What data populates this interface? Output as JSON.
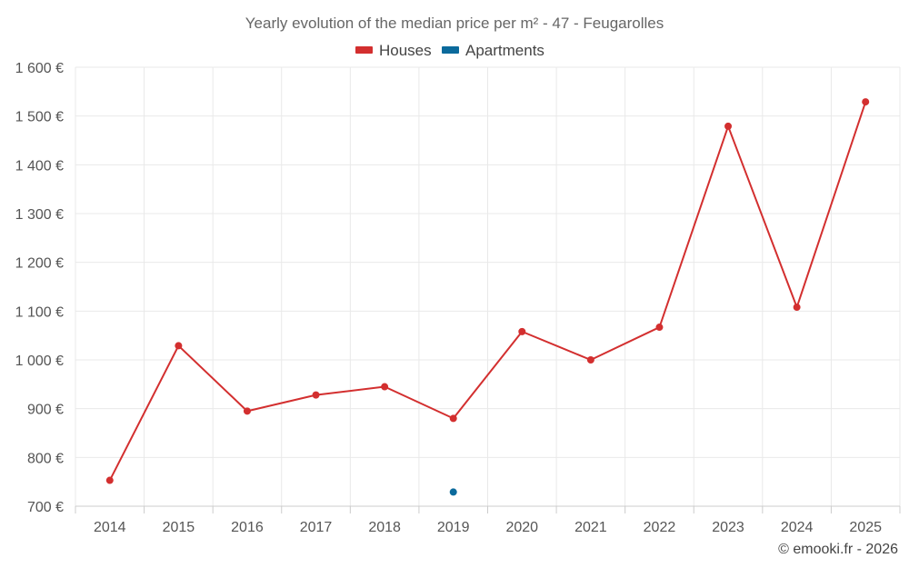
{
  "chart_data": {
    "type": "line",
    "title": "Yearly evolution of the median price per m² - 47 - Feugarolles",
    "categories": [
      "2014",
      "2015",
      "2016",
      "2017",
      "2018",
      "2019",
      "2020",
      "2021",
      "2022",
      "2023",
      "2024",
      "2025"
    ],
    "series": [
      {
        "name": "Houses",
        "color": "#d32f2f",
        "values": [
          753,
          1029,
          895,
          928,
          945,
          880,
          1058,
          1000,
          1067,
          1479,
          1108,
          1529
        ]
      },
      {
        "name": "Apartments",
        "color": "#0b6a9c",
        "values": [
          null,
          null,
          null,
          null,
          null,
          729,
          null,
          null,
          null,
          null,
          null,
          null
        ]
      }
    ],
    "y_ticks": [
      700,
      800,
      900,
      1000,
      1100,
      1200,
      1300,
      1400,
      1500,
      1600
    ],
    "y_tick_labels": [
      "700 €",
      "800 €",
      "900 €",
      "1 000 €",
      "1 100 €",
      "1 200 €",
      "1 300 €",
      "1 400 €",
      "1 500 €",
      "1 600 €"
    ],
    "ylim": [
      700,
      1600
    ],
    "xlabel": "",
    "ylabel": "",
    "grid": true,
    "legend_position": "top-center"
  },
  "credit": "© emooki.fr - 2026"
}
